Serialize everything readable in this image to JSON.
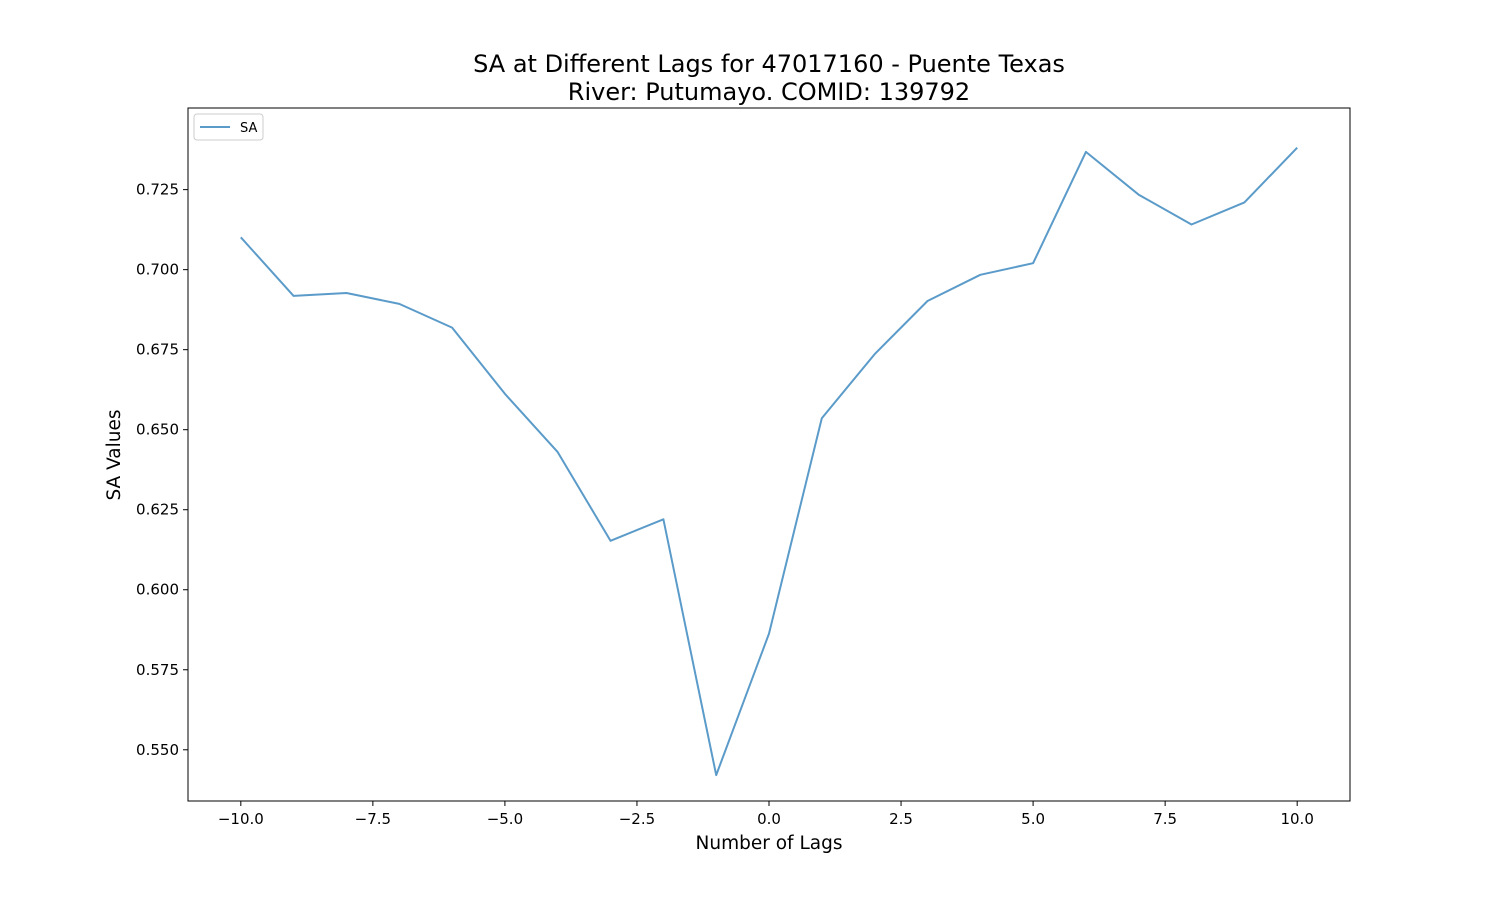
{
  "chart_data": {
    "type": "line",
    "title": "SA at Different Lags for 47017160 - Puente Texas",
    "subtitle": "River: Putumayo. COMID: 139792",
    "xlabel": "Number of Lags",
    "ylabel": "SA Values",
    "xlim": [
      -11,
      11
    ],
    "ylim": [
      0.534,
      0.7505
    ],
    "xticks": [
      -10.0,
      -7.5,
      -5.0,
      -2.5,
      0.0,
      2.5,
      5.0,
      7.5,
      10.0
    ],
    "xtick_labels": [
      "−10.0",
      "−7.5",
      "−5.0",
      "−2.5",
      "0.0",
      "2.5",
      "5.0",
      "7.5",
      "10.0"
    ],
    "yticks": [
      0.55,
      0.575,
      0.6,
      0.625,
      0.65,
      0.675,
      0.7,
      0.725
    ],
    "ytick_labels": [
      "0.550",
      "0.575",
      "0.600",
      "0.625",
      "0.650",
      "0.675",
      "0.700",
      "0.725"
    ],
    "grid": false,
    "legend_position": "top-left",
    "series": [
      {
        "name": "SA",
        "color": "#5b9bc9",
        "x": [
          -10,
          -9,
          -8,
          -7,
          -6,
          -5,
          -4,
          -3,
          -2,
          -1,
          0,
          1,
          2,
          3,
          4,
          5,
          6,
          7,
          8,
          9,
          10
        ],
        "values": [
          0.7101,
          0.6918,
          0.6927,
          0.6893,
          0.6819,
          0.6612,
          0.643,
          0.6153,
          0.622,
          0.5421,
          0.5863,
          0.6536,
          0.6736,
          0.6902,
          0.6984,
          0.702,
          0.7368,
          0.7234,
          0.7141,
          0.721,
          0.7381
        ]
      }
    ]
  }
}
